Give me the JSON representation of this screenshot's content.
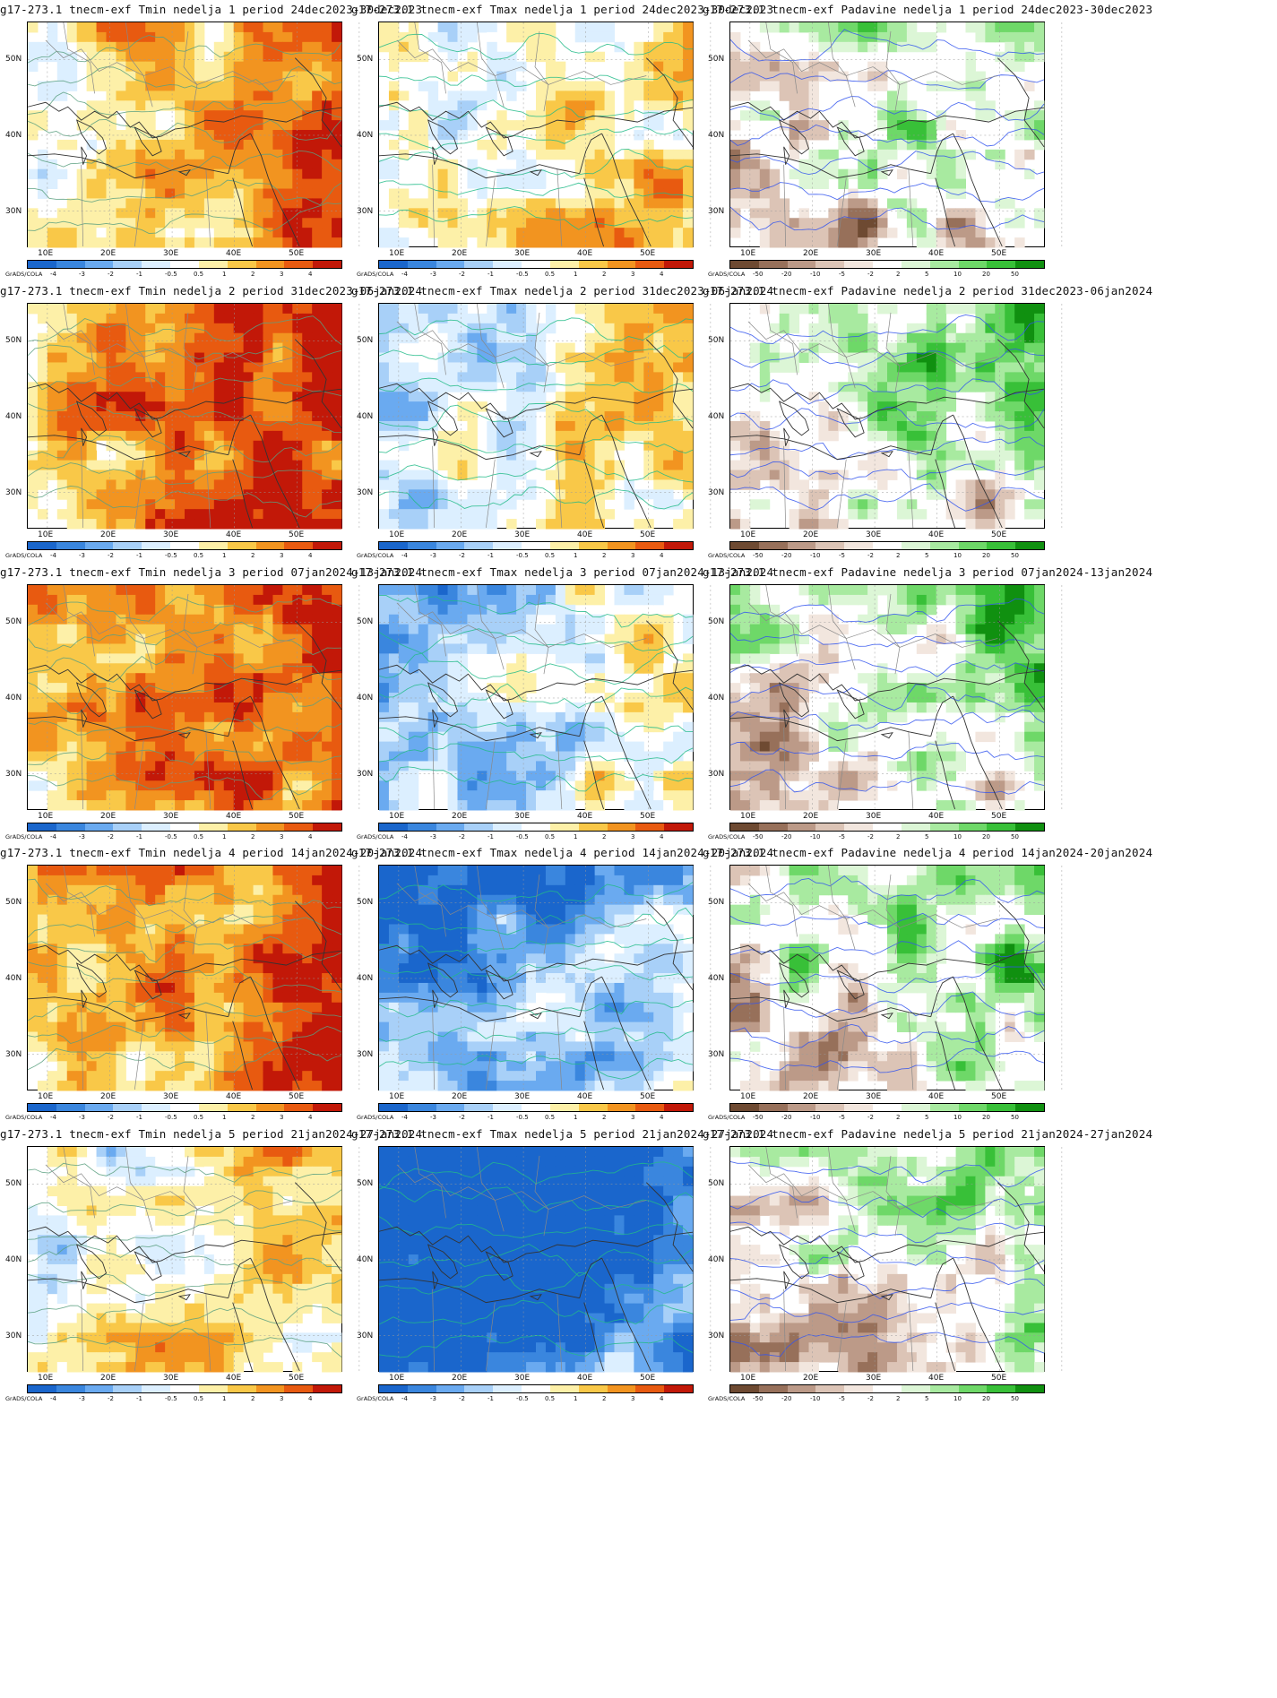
{
  "panels": [
    {
      "title": "g17-273.1 tnecm-exf Tmin nedelja 1 period 24dec2023-30dec2023",
      "type": "tmin",
      "week": 1,
      "anomaly_level": 0.75
    },
    {
      "title": "g17-273.1 tnecm-exf Tmax nedelja 1 period 24dec2023-30dec2023",
      "type": "tmax",
      "week": 1,
      "anomaly_level": 0.55
    },
    {
      "title": "g17-273.1 tnecm-exf Padavine nedelja 1 period 24dec2023-30dec2023",
      "type": "precip",
      "week": 1,
      "anomaly_level": 0.45
    },
    {
      "title": "g17-273.1 tnecm-exf Tmin nedelja 2 period 31dec2023-06jan2024",
      "type": "tmin",
      "week": 2,
      "anomaly_level": 0.85
    },
    {
      "title": "g17-273.1 tnecm-exf Tmax nedelja 2 period 31dec2023-06jan2024",
      "type": "tmax",
      "week": 2,
      "anomaly_level": 0.55
    },
    {
      "title": "g17-273.1 tnecm-exf Padavine nedelja 2 period 31dec2023-06jan2024",
      "type": "precip",
      "week": 2,
      "anomaly_level": 0.55
    },
    {
      "title": "g17-273.1 tnecm-exf Tmin nedelja 3 period 07jan2024-13jan2024",
      "type": "tmin",
      "week": 3,
      "anomaly_level": 0.8
    },
    {
      "title": "g17-273.1 tnecm-exf Tmax nedelja 3 period 07jan2024-13jan2024",
      "type": "tmax",
      "week": 3,
      "anomaly_level": 0.45
    },
    {
      "title": "g17-273.1 tnecm-exf Padavine nedelja 3 period 07jan2024-13jan2024",
      "type": "precip",
      "week": 3,
      "anomaly_level": 0.6
    },
    {
      "title": "g17-273.1 tnecm-exf Tmin nedelja 4 period 14jan2024-20jan2024",
      "type": "tmin",
      "week": 4,
      "anomaly_level": 0.75
    },
    {
      "title": "g17-273.1 tnecm-exf Tmax nedelja 4 period 14jan2024-20jan2024",
      "type": "tmax",
      "week": 4,
      "anomaly_level": 0.35
    },
    {
      "title": "g17-273.1 tnecm-exf Padavine nedelja 4 period 14jan2024-20jan2024",
      "type": "precip",
      "week": 4,
      "anomaly_level": 0.6
    },
    {
      "title": "g17-273.1 tnecm-exf Tmin nedelja 5 period 21jan2024-27jan2024",
      "type": "tmin",
      "week": 5,
      "anomaly_level": 0.6
    },
    {
      "title": "g17-273.1 tnecm-exf Tmax nedelja 5 period 21jan2024-27jan2024",
      "type": "tmax",
      "week": 5,
      "anomaly_level": 0.15
    },
    {
      "title": "g17-273.1 tnecm-exf Padavine nedelja 5 period 21jan2024-27jan2024",
      "type": "precip",
      "week": 5,
      "anomaly_level": 0.5
    }
  ],
  "lat_labels": [
    "50N",
    "40N",
    "30N"
  ],
  "lon_labels": [
    "10E",
    "20E",
    "30E",
    "40E",
    "50E"
  ],
  "grads_label": "GrADS/COLA",
  "temp_colorbar": {
    "labels": [
      "-4",
      "-3",
      "-2",
      "-1",
      "-0.5",
      "0.5",
      "1",
      "2",
      "3",
      "4"
    ],
    "colors": [
      "#1a66cc",
      "#3a86de",
      "#6aaaf0",
      "#a8d0f8",
      "#dcefff",
      "#ffffff",
      "#fdf0a8",
      "#f9c848",
      "#f29420",
      "#e85a10",
      "#c21808"
    ]
  },
  "precip_colorbar": {
    "labels": [
      "-50",
      "-20",
      "-10",
      "-5",
      "-2",
      "2",
      "5",
      "10",
      "20",
      "50"
    ],
    "colors": [
      "#6e4a32",
      "#97705a",
      "#bc9a88",
      "#dcc4b6",
      "#f2e6de",
      "#ffffff",
      "#dcf6d6",
      "#a8eaa0",
      "#6ed868",
      "#38c038",
      "#109010"
    ]
  }
}
